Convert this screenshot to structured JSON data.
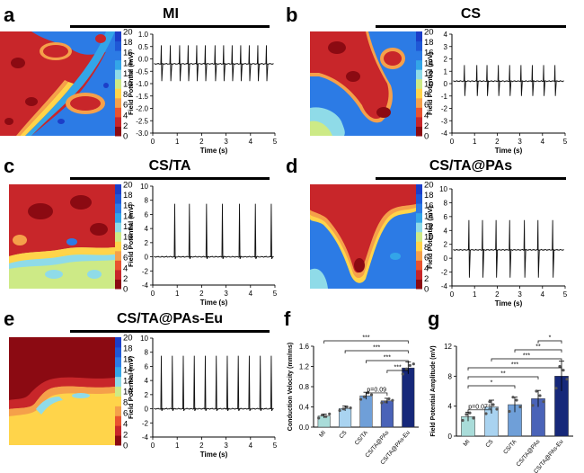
{
  "colors": {
    "colorbar": [
      "#8b0a12",
      "#c8262a",
      "#e9532f",
      "#f5a04a",
      "#ffd44a",
      "#cdea86",
      "#8fdbe8",
      "#33a5e8",
      "#2c7be5",
      "#1f58d6",
      "#1c3ec8"
    ],
    "trace": "#111111",
    "bar_colors": [
      "#a9dcd9",
      "#a9d3f0",
      "#6f9fd8",
      "#4a63b8",
      "#16287a"
    ]
  },
  "maps": [
    {
      "letter": "a",
      "title": "MI",
      "colorbar_ticks": [
        "20",
        "18",
        "16",
        "14",
        "12",
        "10",
        "8",
        "6",
        "4",
        "2",
        "0"
      ],
      "ylabel": "Field Potential (mV)",
      "xlabel": "Time (s)",
      "yticks": [
        "1.0",
        "0.5",
        "0.0",
        "-0.5",
        "-1.0",
        "-1.5",
        "-2.0",
        "-2.5",
        "-3.0"
      ],
      "xticks": [
        "0",
        "1",
        "2",
        "3",
        "4",
        "5"
      ]
    },
    {
      "letter": "b",
      "title": "CS",
      "colorbar_ticks": [
        "20",
        "18",
        "16",
        "14",
        "12",
        "10",
        "8",
        "6",
        "4",
        "2",
        "0"
      ],
      "ylabel": "Field Potential (mV)",
      "xlabel": "Time (s)",
      "yticks": [
        "4",
        "3",
        "2",
        "1",
        "0",
        "-1",
        "-2",
        "-3",
        "-4"
      ],
      "xticks": [
        "0",
        "1",
        "2",
        "3",
        "4",
        "5"
      ]
    },
    {
      "letter": "c",
      "title": "CS/TA",
      "colorbar_ticks": [
        "20",
        "18",
        "16",
        "14",
        "12",
        "10",
        "8",
        "6",
        "4",
        "2",
        "0"
      ],
      "ylabel": "Field Potential (mV)",
      "xlabel": "Time (s)",
      "yticks": [
        "10",
        "8",
        "6",
        "4",
        "2",
        "0",
        "-2",
        "-4"
      ],
      "xticks": [
        "0",
        "1",
        "2",
        "3",
        "4",
        "5"
      ]
    },
    {
      "letter": "d",
      "title": "CS/TA@PAs",
      "colorbar_ticks": [
        "20",
        "18",
        "16",
        "14",
        "12",
        "10",
        "8",
        "6",
        "4",
        "2",
        "0"
      ],
      "ylabel": "Field Potential (mV)",
      "xlabel": "Time (s)",
      "yticks": [
        "10",
        "8",
        "6",
        "4",
        "2",
        "0",
        "-2",
        "-4"
      ],
      "xticks": [
        "0",
        "1",
        "2",
        "3",
        "4",
        "5"
      ]
    },
    {
      "letter": "e",
      "title": "CS/TA@PAs-Eu",
      "colorbar_ticks": [
        "20",
        "18",
        "16",
        "14",
        "12",
        "10",
        "8",
        "6",
        "4",
        "2",
        "0"
      ],
      "ylabel": "Field Potential (mV)",
      "xlabel": "Time (s)",
      "yticks": [
        "10",
        "8",
        "6",
        "4",
        "2",
        "0",
        "-2",
        "-4"
      ],
      "xticks": [
        "0",
        "1",
        "2",
        "3",
        "4",
        "5"
      ]
    }
  ],
  "chart_data": [
    {
      "type": "line",
      "title": "",
      "xlabel": "Time (s)",
      "ylabel": "Field Potential (mV)",
      "xlim": [
        0,
        5
      ],
      "ylim": [
        -3,
        1
      ],
      "series": [
        {
          "spike_times": [
            0.35,
            0.72,
            1.1,
            1.45,
            1.8,
            2.15,
            2.55,
            2.9,
            3.25,
            3.6,
            3.95,
            4.3,
            4.65
          ],
          "baseline": -0.2,
          "peak": 0.55,
          "trough": -0.9
        }
      ]
    },
    {
      "type": "line",
      "title": "",
      "xlabel": "Time (s)",
      "ylabel": "Field Potential (mV)",
      "xlim": [
        0,
        5
      ],
      "ylim": [
        -4,
        4
      ],
      "series": [
        {
          "spike_times": [
            0.55,
            1.1,
            1.55,
            2.05,
            2.55,
            3.05,
            3.55,
            4.05,
            4.55
          ],
          "baseline": 0.2,
          "peak": 1.5,
          "trough": -1.0
        }
      ]
    },
    {
      "type": "line",
      "title": "",
      "xlabel": "Time (s)",
      "ylabel": "Field Potential (mV)",
      "xlim": [
        0,
        5
      ],
      "ylim": [
        -4,
        10
      ],
      "series": [
        {
          "spike_times": [
            0.9,
            1.5,
            2.2,
            2.85,
            3.55,
            4.2,
            4.85
          ],
          "baseline": 0.0,
          "peak": 7.5,
          "trough": -0.3
        }
      ]
    },
    {
      "type": "line",
      "title": "",
      "xlabel": "Time (s)",
      "ylabel": "Field Potential (mV)",
      "xlim": [
        0,
        5
      ],
      "ylim": [
        -4,
        10
      ],
      "series": [
        {
          "spike_times": [
            0.75,
            1.35,
            1.95,
            2.55,
            3.2,
            3.8,
            4.45
          ],
          "baseline": 1.2,
          "peak": 5.5,
          "trough": -2.8
        }
      ]
    },
    {
      "type": "line",
      "title": "",
      "xlabel": "Time (s)",
      "ylabel": "Field Potential (mV)",
      "xlim": [
        0,
        5
      ],
      "ylim": [
        -4,
        10
      ],
      "series": [
        {
          "spike_times": [
            0.35,
            0.8,
            1.25,
            1.7,
            2.15,
            2.6,
            3.05,
            3.5,
            3.95,
            4.4,
            4.85
          ],
          "baseline": 0.0,
          "peak": 7.5,
          "trough": -0.3
        }
      ]
    },
    {
      "type": "bar",
      "letter": "f",
      "title": "",
      "ylabel": "Conduction Velocity (mm/ms)",
      "ylim": [
        0,
        1.6
      ],
      "yticks": [
        "1.6",
        "1.2",
        "0.8",
        "0.4",
        "0.0"
      ],
      "categories": [
        "MI",
        "CS",
        "CS/TA",
        "CS/TA@PAs",
        "CS/TA@PAs-Eu"
      ],
      "values": [
        0.22,
        0.37,
        0.62,
        0.52,
        1.17
      ],
      "errors": [
        0.04,
        0.05,
        0.07,
        0.05,
        0.12
      ],
      "points": [
        [
          0.18,
          0.24,
          0.21,
          0.26
        ],
        [
          0.33,
          0.36,
          0.4,
          0.38
        ],
        [
          0.55,
          0.6,
          0.68,
          0.64
        ],
        [
          0.48,
          0.5,
          0.56,
          0.53
        ],
        [
          1.05,
          1.15,
          1.22,
          1.25
        ]
      ],
      "annotations": [
        {
          "from": 0,
          "to": 4,
          "text": "***"
        },
        {
          "from": 1,
          "to": 4,
          "text": "***"
        },
        {
          "from": 2,
          "to": 4,
          "text": "***"
        },
        {
          "from": 3,
          "to": 4,
          "text": "***"
        },
        {
          "from": 2,
          "to": 3,
          "text": "p=0.09"
        }
      ]
    },
    {
      "type": "bar",
      "letter": "g",
      "title": "",
      "ylabel": "Field Potential Amplitude (mV)",
      "ylim": [
        0,
        12
      ],
      "yticks": [
        "12",
        "8",
        "4",
        "0"
      ],
      "categories": [
        "MI",
        "CS",
        "CS/TA",
        "CS/TA@PAs",
        "CS/TA@PAs-Eu"
      ],
      "values": [
        2.6,
        3.9,
        4.2,
        5.0,
        8.0
      ],
      "errors": [
        0.6,
        0.9,
        1.0,
        1.1,
        2.0
      ],
      "points": [
        [
          2.1,
          2.9,
          3.1,
          2.4
        ],
        [
          3.0,
          4.6,
          4.2,
          3.6
        ],
        [
          3.3,
          5.2,
          4.8,
          3.9
        ],
        [
          4.1,
          6.0,
          5.4,
          4.6
        ],
        [
          6.4,
          9.3,
          8.8,
          7.6
        ]
      ],
      "annotations": [
        {
          "from": 0,
          "to": 1,
          "text": "p=0.071"
        },
        {
          "from": 0,
          "to": 2,
          "text": "*"
        },
        {
          "from": 0,
          "to": 3,
          "text": "**"
        },
        {
          "from": 0,
          "to": 4,
          "text": "***"
        },
        {
          "from": 1,
          "to": 4,
          "text": "***"
        },
        {
          "from": 2,
          "to": 4,
          "text": "**"
        },
        {
          "from": 3,
          "to": 4,
          "text": "*"
        }
      ]
    }
  ]
}
